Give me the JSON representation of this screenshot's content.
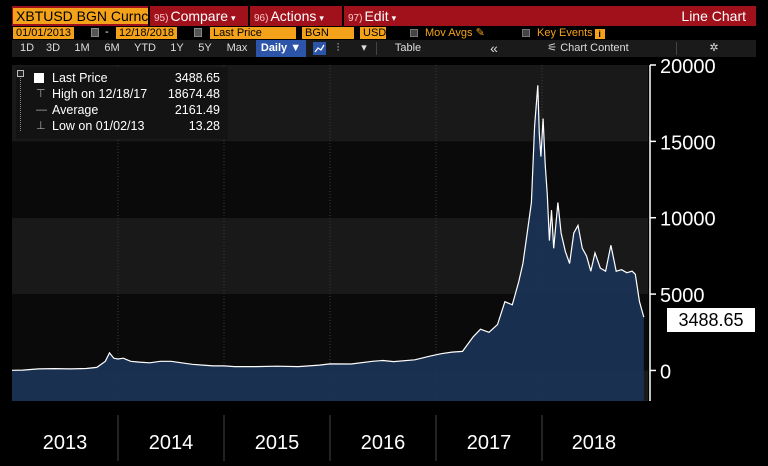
{
  "title_bar": {
    "ticker": "XBTUSD BGN Curncy",
    "menus": [
      {
        "num": "95)",
        "label": "Compare",
        "caret": true
      },
      {
        "num": "96)",
        "label": "Actions",
        "caret": true
      },
      {
        "num": "97)",
        "label": "Edit",
        "caret": true
      }
    ],
    "chart_title": "Line Chart"
  },
  "params": {
    "start_date": "01/01/2013",
    "end_date": "12/18/2018",
    "field": "Last Price",
    "source": "BGN",
    "currency": "USD",
    "mov_avgs": "Mov Avgs",
    "key_events": "Key Events"
  },
  "toolbar": {
    "periods": [
      "1D",
      "3D",
      "1M",
      "6M",
      "YTD",
      "1Y",
      "5Y",
      "Max"
    ],
    "frequency": "Daily",
    "table": "Table",
    "chart_content": "Chart Content",
    "collapse": "«"
  },
  "legend": {
    "rows": [
      {
        "label": "Last Price",
        "value": "3488.65"
      },
      {
        "label": "High on 12/18/17",
        "value": "18674.48"
      },
      {
        "label": "Average",
        "value": "2161.49"
      },
      {
        "label": "Low on 01/02/13",
        "value": "13.28"
      }
    ]
  },
  "last_price_callout": "3488.65",
  "colors": {
    "title_bar": "#a1111b",
    "amber": "#f4a21a",
    "line": "#ffffff",
    "area_fill": "#1b3358",
    "background": "#000000"
  },
  "chart_data": {
    "type": "area",
    "title": "",
    "xlabel": "",
    "ylabel": "",
    "ylim": [
      -2000,
      20000
    ],
    "yticks": [
      0,
      5000,
      10000,
      15000,
      20000
    ],
    "xlim": [
      2013.0,
      2019.0
    ],
    "year_labels": [
      "2013",
      "2014",
      "2015",
      "2016",
      "2017",
      "2018"
    ],
    "series": [
      {
        "name": "Last Price",
        "x": [
          2013.0,
          2013.1,
          2013.25,
          2013.4,
          2013.55,
          2013.7,
          2013.8,
          2013.88,
          2013.92,
          2013.96,
          2014.0,
          2014.05,
          2014.12,
          2014.2,
          2014.3,
          2014.4,
          2014.5,
          2014.6,
          2014.7,
          2014.8,
          2014.9,
          2015.0,
          2015.1,
          2015.3,
          2015.5,
          2015.7,
          2015.9,
          2016.0,
          2016.2,
          2016.4,
          2016.5,
          2016.6,
          2016.8,
          2016.95,
          2017.05,
          2017.15,
          2017.25,
          2017.35,
          2017.42,
          2017.5,
          2017.58,
          2017.65,
          2017.72,
          2017.78,
          2017.82,
          2017.86,
          2017.9,
          2017.93,
          2017.96,
          2017.975,
          2017.99,
          2018.01,
          2018.03,
          2018.05,
          2018.07,
          2018.09,
          2018.11,
          2018.15,
          2018.18,
          2018.22,
          2018.26,
          2018.3,
          2018.34,
          2018.38,
          2018.42,
          2018.46,
          2018.5,
          2018.55,
          2018.6,
          2018.65,
          2018.7,
          2018.75,
          2018.8,
          2018.85,
          2018.88,
          2018.92,
          2018.96
        ],
        "y": [
          13,
          20,
          100,
          120,
          100,
          130,
          200,
          600,
          1150,
          800,
          750,
          800,
          600,
          550,
          500,
          600,
          600,
          500,
          400,
          350,
          300,
          300,
          250,
          250,
          280,
          250,
          350,
          430,
          420,
          600,
          650,
          580,
          700,
          950,
          1100,
          1200,
          1250,
          2200,
          2700,
          2500,
          3000,
          4500,
          4300,
          5800,
          7000,
          9000,
          11000,
          16000,
          18674,
          15500,
          14000,
          16500,
          13500,
          11500,
          8500,
          10500,
          8000,
          11000,
          9000,
          7800,
          7000,
          9000,
          9500,
          8000,
          7500,
          6500,
          7700,
          6700,
          6500,
          8200,
          6500,
          6600,
          6400,
          6500,
          6300,
          4500,
          3489
        ]
      }
    ]
  }
}
